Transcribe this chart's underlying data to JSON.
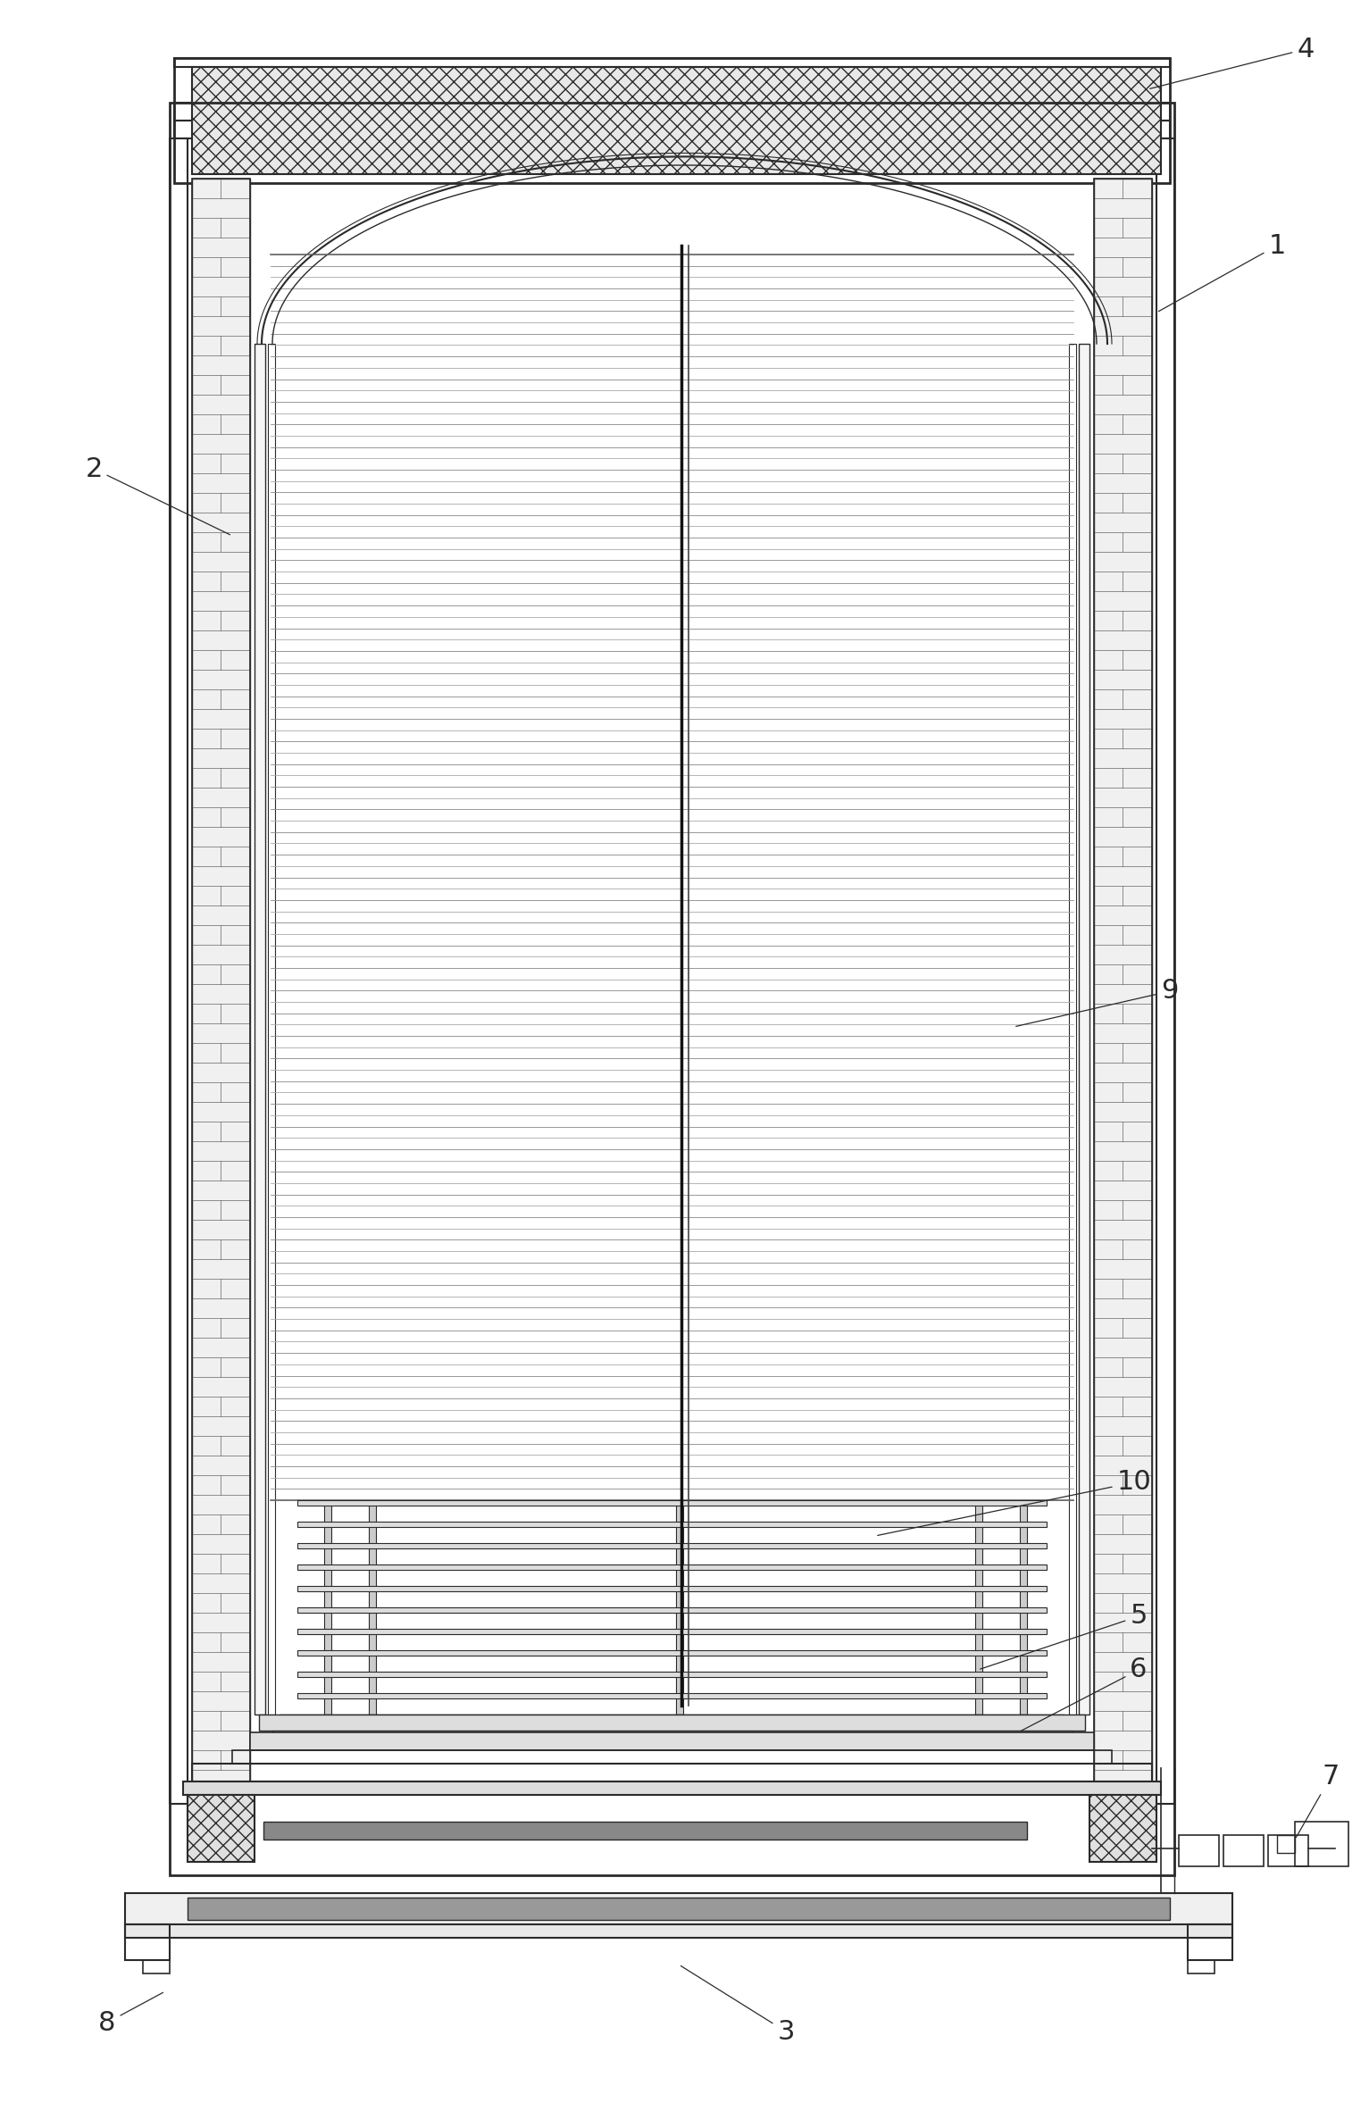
{
  "bg_color": "#ffffff",
  "line_color": "#2a2a2a",
  "figsize": [
    15.33,
    23.64
  ],
  "dpi": 100
}
